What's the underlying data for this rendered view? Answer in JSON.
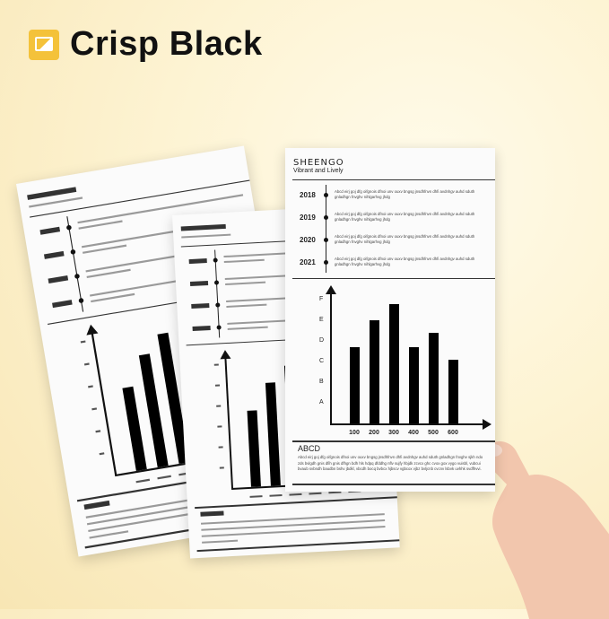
{
  "header": {
    "title": "Crisp Black",
    "icon": "image-icon",
    "icon_color": "#f4c23a"
  },
  "sheets": [
    {
      "brand": "SHEENGO",
      "tagline": "Vibrant and Lively",
      "timeline": [
        {
          "year": "2018",
          "text": "Abcd eirj goj dfg oifgnois dfnoi unv ouxv bngsg jnsdhfnvn dhfi avdnhgv auhd sduth gnladhgn fnvghv nihlgarhvg jhdg"
        },
        {
          "year": "2019",
          "text": "Abcd eirj goj dfg oifgnois dfnoi unv ouxv bngsg jnsdhfnvn dhfi avdnhgv auhd sduth gnladhgn fnvghv nihlgarhvg jhdg"
        },
        {
          "year": "2020",
          "text": "Abcd eirj goj dfg oifgnois dfnoi unv ouxv bngsg jnsdhfnvn dhfi avdnhgv auhd sduth gnladhgn fnvghv nihlgarhvg jhdg"
        },
        {
          "year": "2021",
          "text": "Abcd eirj goj dfg oifgnois dfnoi unv ouxv bngsg jnsdhfnvn dhfi avdnhgv auhd sduth gnladhgn fnvghv nihlgarhvg jhdg"
        }
      ],
      "chart": {
        "type": "bar",
        "y_ticks": [
          "A",
          "B",
          "C",
          "D",
          "E",
          "F"
        ],
        "categories": [
          "100",
          "200",
          "300",
          "400",
          "500",
          "600"
        ],
        "values": [
          3.7,
          5.0,
          5.8,
          3.7,
          4.4,
          3.1
        ]
      },
      "section_title": "ABCD",
      "paragraph": "Abcd eirj goj dfg oifgnois dfnoi unv ouxv bngsg jnsdhfnvn dhfi avdnhgv auhd sduth gnladhgn fnvghv sjkh ndo zds bvlgdh gnis dfih gnis dfhgn bdh hls hdpq dfddhg nflv sujfy hbjdk zcvcx ghc cvox gox vygo vuisbl, vubcui bvaub svbndh baudbn bshv jbdkl, vbcdh bocq bvbcx hjbscv vgbcox vjbz bvljcnb cvcnv lsbvk uvhhk svdfhvvi."
    }
  ]
}
